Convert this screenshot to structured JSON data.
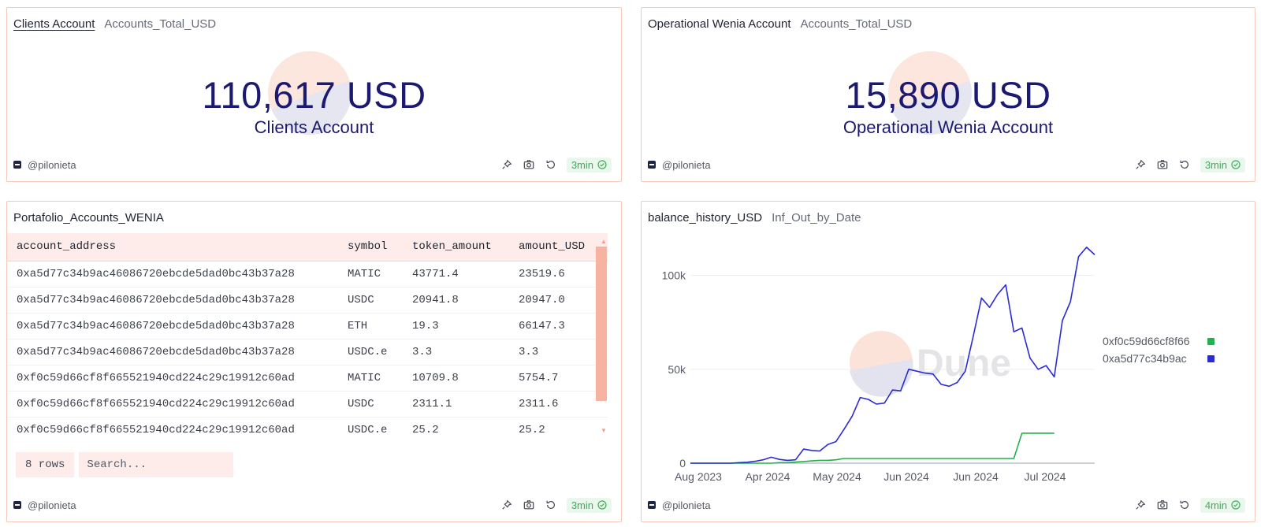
{
  "counters": [
    {
      "title": "Clients Account",
      "subtitle": "Accounts_Total_USD",
      "value": "110,617 USD",
      "label": "Clients Account",
      "author": "@pilonieta",
      "refresh": "3min"
    },
    {
      "title": "Operational Wenia Account",
      "subtitle": "Accounts_Total_USD",
      "value": "15,890 USD",
      "label": "Operational Wenia Account",
      "author": "@pilonieta",
      "refresh": "3min"
    }
  ],
  "table": {
    "title": "Portafolio_Accounts_WENIA",
    "columns": [
      "account_address",
      "symbol",
      "token_amount",
      "amount_USD"
    ],
    "rows": [
      [
        "0xa5d77c34b9ac46086720ebcde5dad0bc43b37a28",
        "MATIC",
        "43771.4",
        "23519.6"
      ],
      [
        "0xa5d77c34b9ac46086720ebcde5dad0bc43b37a28",
        "USDC",
        "20941.8",
        "20947.0"
      ],
      [
        "0xa5d77c34b9ac46086720ebcde5dad0bc43b37a28",
        "ETH",
        "19.3",
        "66147.3"
      ],
      [
        "0xa5d77c34b9ac46086720ebcde5dad0bc43b37a28",
        "USDC.e",
        "3.3",
        "3.3"
      ],
      [
        "0xf0c59d66cf8f665521940cd224c29c19912c60ad",
        "MATIC",
        "10709.8",
        "5754.7"
      ],
      [
        "0xf0c59d66cf8f665521940cd224c29c19912c60ad",
        "USDC",
        "2311.1",
        "2311.6"
      ],
      [
        "0xf0c59d66cf8f665521940cd224c29c19912c60ad",
        "USDC.e",
        "25.2",
        "25.2"
      ]
    ],
    "row_count": "8 rows",
    "search_placeholder": "Search...",
    "author": "@pilonieta",
    "refresh": "3min"
  },
  "chart_panel": {
    "title": "balance_history_USD",
    "subtitle": "Inf_Out_by_Date",
    "watermark_text": "Dune",
    "author": "@pilonieta",
    "refresh": "4min"
  },
  "chart_data": {
    "type": "line",
    "title": "",
    "xlabel": "",
    "ylabel": "",
    "x_tick_labels": [
      "Aug 2023",
      "Apr 2024",
      "May 2024",
      "Jun 2024",
      "Jun 2024",
      "Jul 2024"
    ],
    "y_ticks": [
      0,
      50000,
      100000
    ],
    "y_tick_labels": [
      "0",
      "50k",
      "100k"
    ],
    "ylim": [
      0,
      120000
    ],
    "grid": true,
    "legend_position": "right",
    "series": [
      {
        "name": "0xf0c59d66cf8f665521940cd224c29c19912c60ad",
        "legend_label": "0xf0c59d66cf8f66",
        "color": "#22b14c",
        "values": [
          0,
          0,
          0,
          0,
          0,
          0,
          0,
          0,
          0,
          0,
          0,
          300,
          300,
          600,
          900,
          1200,
          1500,
          1500,
          1800,
          2500,
          2500,
          2500,
          2500,
          2500,
          2500,
          2500,
          2500,
          2500,
          2500,
          2500,
          2500,
          2500,
          2500,
          2500,
          2500,
          2500,
          2500,
          2500,
          2500,
          2500,
          2500,
          16000,
          16000,
          16000,
          16000,
          16000,
          16000,
          16000,
          16000,
          16000,
          16000
        ]
      },
      {
        "name": "0xa5d77c34b9ac46086720ebcde5dad0bc43b37a28",
        "legend_label": "0xa5d77c34b9ac",
        "color": "#2b2bd4",
        "values": [
          0,
          0,
          0,
          0,
          0,
          0,
          300,
          500,
          1000,
          1800,
          3200,
          2000,
          1500,
          1800,
          7500,
          6800,
          6500,
          10000,
          11500,
          18000,
          25000,
          35000,
          34000,
          31500,
          32000,
          39000,
          38500,
          50000,
          49000,
          48000,
          47500,
          42000,
          41000,
          43000,
          49000,
          68000,
          88000,
          83000,
          90000,
          95000,
          70000,
          72000,
          56000,
          50000,
          52000,
          46000,
          76000,
          86000,
          110000,
          115000,
          111000
        ]
      }
    ]
  }
}
